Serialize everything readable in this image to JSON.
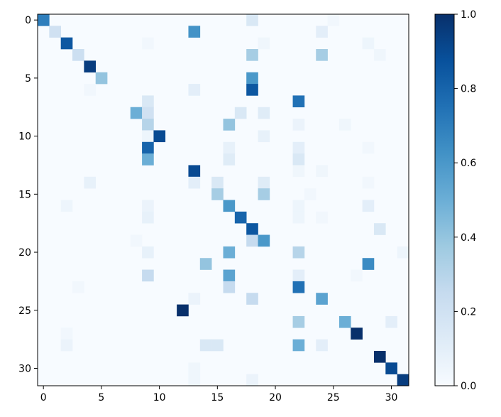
{
  "chart_data": {
    "type": "heatmap",
    "rows": 32,
    "cols": 32,
    "x_ticks": [
      0,
      5,
      10,
      15,
      20,
      25,
      30
    ],
    "y_ticks": [
      0,
      5,
      10,
      15,
      20,
      25,
      30
    ],
    "colorbar": {
      "vmin": 0.0,
      "vmax": 1.0,
      "ticks": [
        "0.0",
        "0.2",
        "0.4",
        "0.6",
        "0.8",
        "1.0"
      ]
    },
    "colormap": "Blues",
    "values": [
      [
        0,
        0,
        0.7
      ],
      [
        0,
        18,
        0.15
      ],
      [
        1,
        1,
        0.2
      ],
      [
        1,
        13,
        0.62
      ],
      [
        1,
        24,
        0.1
      ],
      [
        2,
        2,
        0.85
      ],
      [
        2,
        19,
        0.04
      ],
      [
        2,
        28,
        0.05
      ],
      [
        3,
        3,
        0.22
      ],
      [
        3,
        18,
        0.35
      ],
      [
        3,
        24,
        0.35
      ],
      [
        3,
        29,
        0.04
      ],
      [
        4,
        4,
        0.95
      ],
      [
        5,
        5,
        0.4
      ],
      [
        5,
        18,
        0.6
      ],
      [
        6,
        13,
        0.1
      ],
      [
        6,
        18,
        0.85
      ],
      [
        7,
        9,
        0.15
      ],
      [
        7,
        22,
        0.75
      ],
      [
        8,
        8,
        0.5
      ],
      [
        8,
        9,
        0.2
      ],
      [
        8,
        17,
        0.15
      ],
      [
        8,
        19,
        0.12
      ],
      [
        9,
        9,
        0.3
      ],
      [
        9,
        16,
        0.4
      ],
      [
        9,
        22,
        0.06
      ],
      [
        10,
        9,
        0.05
      ],
      [
        10,
        10,
        0.9
      ],
      [
        10,
        19,
        0.08
      ],
      [
        11,
        9,
        0.8
      ],
      [
        11,
        16,
        0.08
      ],
      [
        11,
        22,
        0.1
      ],
      [
        12,
        9,
        0.5
      ],
      [
        12,
        16,
        0.12
      ],
      [
        12,
        22,
        0.15
      ],
      [
        13,
        13,
        0.9
      ],
      [
        13,
        22,
        0.04
      ],
      [
        14,
        4,
        0.08
      ],
      [
        14,
        13,
        0.1
      ],
      [
        14,
        15,
        0.15
      ],
      [
        14,
        19,
        0.12
      ],
      [
        15,
        15,
        0.35
      ],
      [
        15,
        19,
        0.35
      ],
      [
        16,
        9,
        0.06
      ],
      [
        16,
        16,
        0.6
      ],
      [
        16,
        22,
        0.05
      ],
      [
        16,
        28,
        0.1
      ],
      [
        17,
        9,
        0.08
      ],
      [
        17,
        17,
        0.8
      ],
      [
        17,
        22,
        0.05
      ],
      [
        18,
        18,
        0.85
      ],
      [
        18,
        29,
        0.15
      ],
      [
        19,
        18,
        0.25
      ],
      [
        19,
        19,
        0.6
      ],
      [
        20,
        9,
        0.08
      ],
      [
        20,
        16,
        0.5
      ],
      [
        20,
        22,
        0.3
      ],
      [
        21,
        14,
        0.4
      ],
      [
        21,
        28,
        0.65
      ],
      [
        22,
        9,
        0.25
      ],
      [
        22,
        16,
        0.55
      ],
      [
        22,
        22,
        0.1
      ],
      [
        23,
        16,
        0.25
      ],
      [
        23,
        22,
        0.75
      ],
      [
        24,
        13,
        0.06
      ],
      [
        24,
        18,
        0.25
      ],
      [
        24,
        24,
        0.55
      ],
      [
        25,
        12,
        1.0
      ],
      [
        26,
        22,
        0.35
      ],
      [
        26,
        26,
        0.5
      ],
      [
        26,
        30,
        0.1
      ],
      [
        27,
        27,
        1.0
      ],
      [
        28,
        14,
        0.15
      ],
      [
        28,
        15,
        0.15
      ],
      [
        28,
        22,
        0.5
      ],
      [
        28,
        24,
        0.1
      ],
      [
        29,
        29,
        1.0
      ],
      [
        30,
        30,
        0.9
      ],
      [
        31,
        31,
        0.95
      ],
      [
        0,
        25,
        0.03
      ],
      [
        2,
        9,
        0.03
      ],
      [
        6,
        4,
        0.03
      ],
      [
        9,
        26,
        0.04
      ],
      [
        11,
        28,
        0.03
      ],
      [
        13,
        24,
        0.04
      ],
      [
        14,
        28,
        0.03
      ],
      [
        15,
        23,
        0.03
      ],
      [
        16,
        2,
        0.05
      ],
      [
        17,
        24,
        0.03
      ],
      [
        19,
        8,
        0.03
      ],
      [
        20,
        31,
        0.05
      ],
      [
        22,
        27,
        0.03
      ],
      [
        23,
        3,
        0.03
      ],
      [
        27,
        2,
        0.03
      ],
      [
        28,
        2,
        0.06
      ],
      [
        30,
        13,
        0.04
      ],
      [
        31,
        13,
        0.04
      ],
      [
        31,
        18,
        0.06
      ]
    ]
  }
}
